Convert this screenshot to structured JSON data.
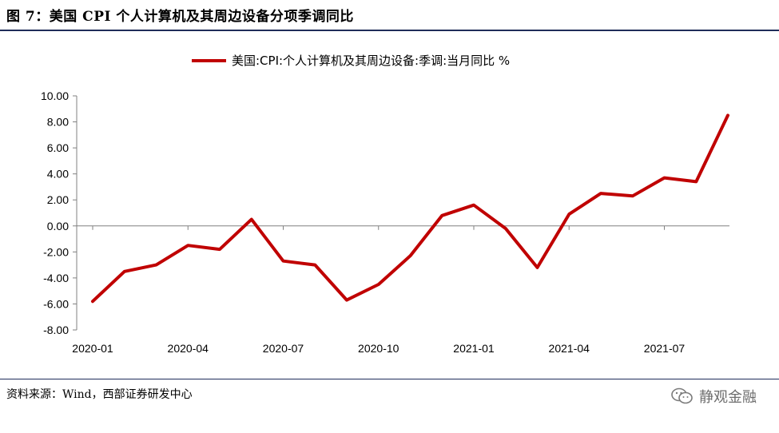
{
  "figure": {
    "title": "图 7：美国 CPI 个人计算机及其周边设备分项季调同比",
    "source": "资料来源：Wind，西部证券研发中心",
    "watermark": "静观金融",
    "watermark_icon": "wechat-icon"
  },
  "chart_data": {
    "type": "line",
    "title": "",
    "xlabel": "",
    "ylabel": "",
    "ylim": [
      -8,
      10
    ],
    "y_ticks": [
      "10.00",
      "8.00",
      "6.00",
      "4.00",
      "2.00",
      "0.00",
      "-2.00",
      "-4.00",
      "-6.00",
      "-8.00"
    ],
    "x_tick_labels": [
      "2020-01",
      "2020-04",
      "2020-07",
      "2020-10",
      "2021-01",
      "2021-04",
      "2021-07"
    ],
    "x": [
      "2020-01",
      "2020-02",
      "2020-03",
      "2020-04",
      "2020-05",
      "2020-06",
      "2020-07",
      "2020-08",
      "2020-09",
      "2020-10",
      "2020-11",
      "2020-12",
      "2021-01",
      "2021-02",
      "2021-03",
      "2021-04",
      "2021-05",
      "2021-06",
      "2021-07",
      "2021-08",
      "2021-09"
    ],
    "grid": false,
    "legend_position": "top-center",
    "series": [
      {
        "name": "美国:CPI:个人计算机及其周边设备:季调:当月同比 %",
        "color": "#c00000",
        "values": [
          -5.8,
          -3.5,
          -3.0,
          -1.5,
          -1.8,
          0.5,
          -2.7,
          -3.0,
          -5.7,
          -4.5,
          -2.3,
          0.8,
          1.6,
          -0.2,
          -3.2,
          0.9,
          2.5,
          2.3,
          3.7,
          3.4,
          8.5
        ]
      }
    ]
  }
}
